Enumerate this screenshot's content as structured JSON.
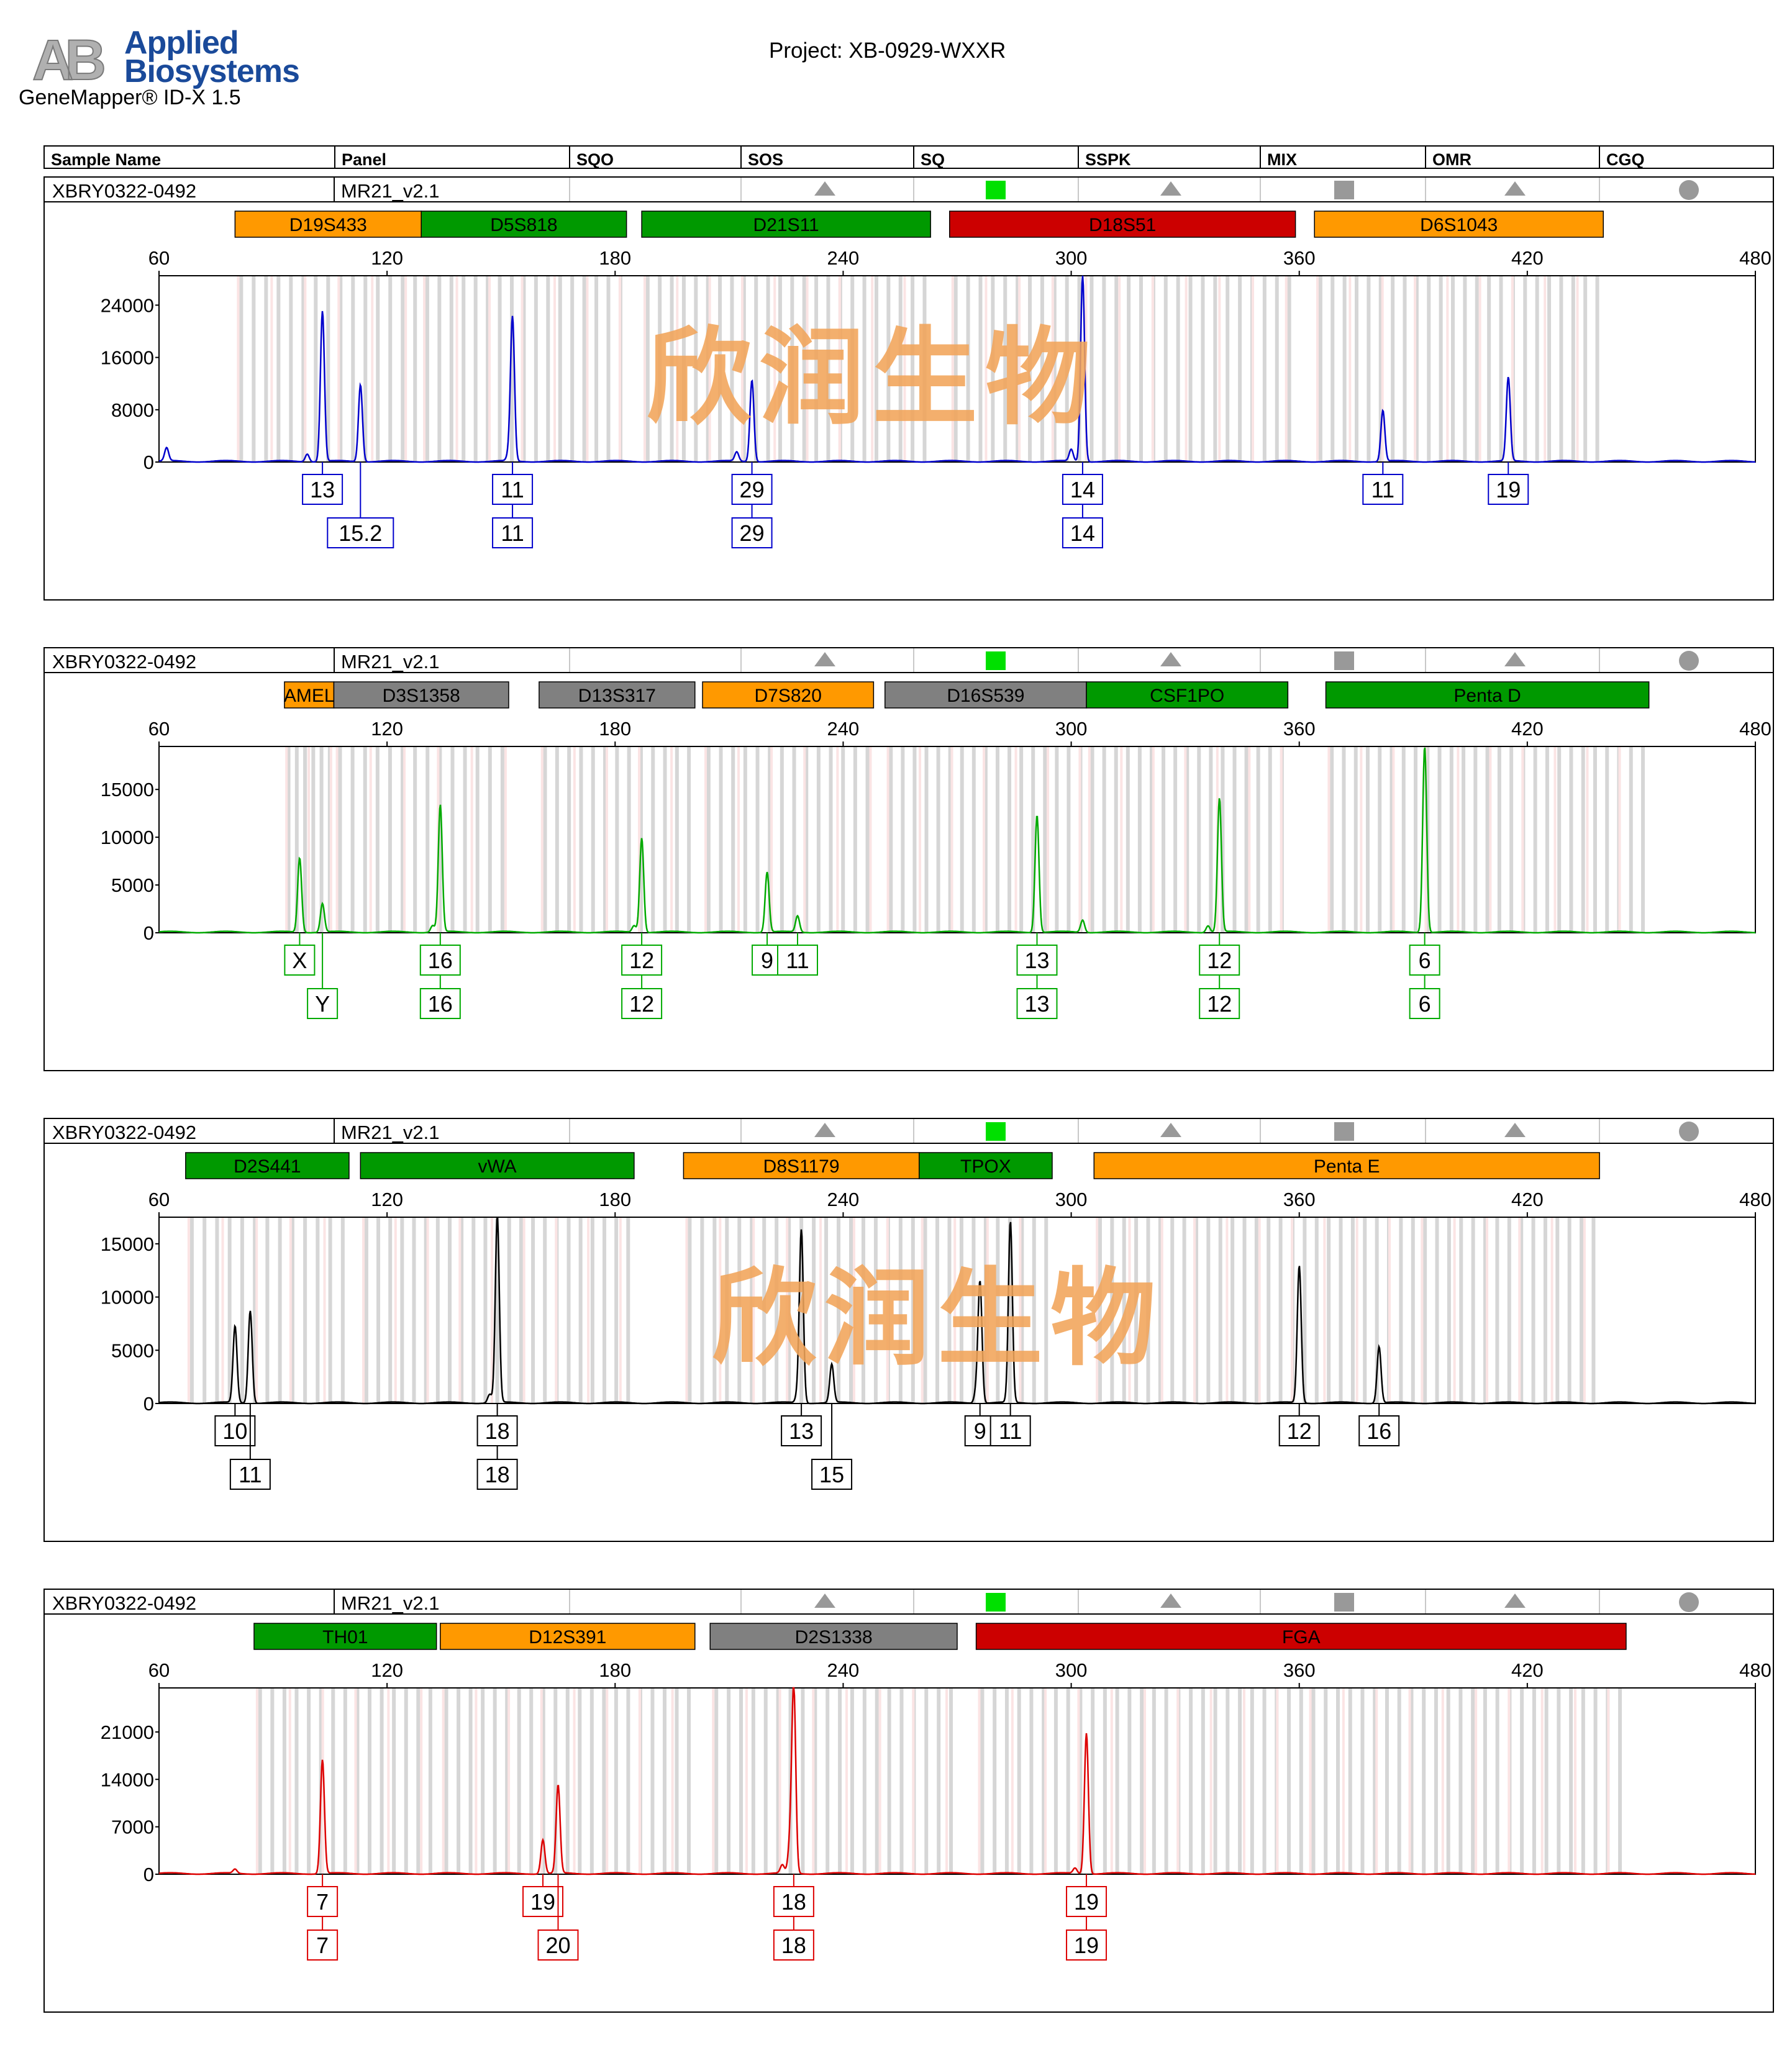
{
  "header": {
    "brand_line1": "Applied",
    "brand_line2": "Biosystems",
    "app_title": "GeneMapper® ID-X  1.5",
    "project": "Project: XB-0929-WXXR",
    "logo_letters": "AB"
  },
  "columns": [
    "Sample Name",
    "Panel",
    "SQO",
    "SOS",
    "SQ",
    "SSPK",
    "MIX",
    "OMR",
    "CGQ"
  ],
  "quality_flags": [
    {
      "name": "sos",
      "shape": "triangle",
      "color": "#999999"
    },
    {
      "name": "sq",
      "shape": "square",
      "color": "#00e000"
    },
    {
      "name": "sspk",
      "shape": "triangle",
      "color": "#999999"
    },
    {
      "name": "mix",
      "shape": "square",
      "color": "#999999"
    },
    {
      "name": "omr",
      "shape": "triangle",
      "color": "#999999"
    },
    {
      "name": "cgq",
      "shape": "circle",
      "color": "#999999"
    }
  ],
  "watermark": "欣润生物",
  "locus_colors": {
    "orange": "#ff9900",
    "green": "#009900",
    "red": "#cc0000",
    "gray": "#808080"
  },
  "chart_data": [
    {
      "type": "line",
      "sample": "XBRY0322-0492",
      "panel": "MR21_v2.1",
      "dye_color": "#0000cc",
      "x_range": [
        60,
        480
      ],
      "x_ticks": [
        60,
        120,
        180,
        240,
        300,
        360,
        420,
        480
      ],
      "y_range": [
        0,
        28500
      ],
      "y_ticks": [
        0,
        8000,
        16000,
        24000
      ],
      "loci": [
        {
          "name": "D19S433",
          "start": 80,
          "end": 129,
          "color": "orange"
        },
        {
          "name": "D5S818",
          "start": 129,
          "end": 183,
          "color": "green"
        },
        {
          "name": "D21S11",
          "start": 187,
          "end": 263,
          "color": "green"
        },
        {
          "name": "D18S51",
          "start": 268,
          "end": 359,
          "color": "red"
        },
        {
          "name": "D6S1043",
          "start": 364,
          "end": 440,
          "color": "orange"
        }
      ],
      "peaks": [
        {
          "x": 62,
          "y": 2000
        },
        {
          "x": 99,
          "y": 1200
        },
        {
          "x": 103,
          "y": 23000
        },
        {
          "x": 113,
          "y": 11800
        },
        {
          "x": 152,
          "y": 1000
        },
        {
          "x": 153,
          "y": 22000
        },
        {
          "x": 212,
          "y": 1400
        },
        {
          "x": 216,
          "y": 12500
        },
        {
          "x": 300,
          "y": 1800
        },
        {
          "x": 303,
          "y": 28500
        },
        {
          "x": 382,
          "y": 7800
        },
        {
          "x": 415,
          "y": 12800
        }
      ],
      "alleles": [
        {
          "x": 103,
          "row1": "13",
          "row2": ""
        },
        {
          "x": 113,
          "row1": "",
          "row2": "15.2"
        },
        {
          "x": 153,
          "row1": "11",
          "row2": "11"
        },
        {
          "x": 216,
          "row1": "29",
          "row2": "29"
        },
        {
          "x": 303,
          "row1": "14",
          "row2": "14"
        },
        {
          "x": 382,
          "row1": "11",
          "row2": ""
        },
        {
          "x": 415,
          "row1": "19",
          "row2": ""
        }
      ]
    },
    {
      "type": "line",
      "sample": "XBRY0322-0492",
      "panel": "MR21_v2.1",
      "dye_color": "#00aa00",
      "x_range": [
        60,
        480
      ],
      "x_ticks": [
        60,
        120,
        180,
        240,
        300,
        360,
        420,
        480
      ],
      "y_range": [
        0,
        19500
      ],
      "y_ticks": [
        0,
        5000,
        10000,
        15000
      ],
      "loci": [
        {
          "name": "AMEL",
          "start": 93,
          "end": 106,
          "color": "orange"
        },
        {
          "name": "D3S1358",
          "start": 106,
          "end": 152,
          "color": "gray"
        },
        {
          "name": "D13S317",
          "start": 160,
          "end": 201,
          "color": "gray"
        },
        {
          "name": "D7S820",
          "start": 203,
          "end": 248,
          "color": "orange"
        },
        {
          "name": "D16S539",
          "start": 251,
          "end": 304,
          "color": "gray"
        },
        {
          "name": "CSF1PO",
          "start": 304,
          "end": 357,
          "color": "green"
        },
        {
          "name": "Penta D",
          "start": 367,
          "end": 452,
          "color": "green"
        }
      ],
      "peaks": [
        {
          "x": 97,
          "y": 7800
        },
        {
          "x": 103,
          "y": 3000
        },
        {
          "x": 132,
          "y": 700
        },
        {
          "x": 134,
          "y": 13300
        },
        {
          "x": 185,
          "y": 700
        },
        {
          "x": 187,
          "y": 9900
        },
        {
          "x": 220,
          "y": 6300
        },
        {
          "x": 228,
          "y": 1700
        },
        {
          "x": 291,
          "y": 12300
        },
        {
          "x": 303,
          "y": 1300
        },
        {
          "x": 336,
          "y": 700
        },
        {
          "x": 339,
          "y": 14000
        },
        {
          "x": 393,
          "y": 19500
        }
      ],
      "alleles": [
        {
          "x": 97,
          "row1": "X",
          "row2": ""
        },
        {
          "x": 103,
          "row1": "",
          "row2": "Y"
        },
        {
          "x": 134,
          "row1": "16",
          "row2": "16"
        },
        {
          "x": 187,
          "row1": "12",
          "row2": "12"
        },
        {
          "x": 220,
          "row1": "9",
          "row2": ""
        },
        {
          "x": 228,
          "row1": "11",
          "row2": ""
        },
        {
          "x": 291,
          "row1": "13",
          "row2": "13"
        },
        {
          "x": 339,
          "row1": "12",
          "row2": "12"
        },
        {
          "x": 393,
          "row1": "6",
          "row2": "6"
        }
      ]
    },
    {
      "type": "line",
      "sample": "XBRY0322-0492",
      "panel": "MR21_v2.1",
      "dye_color": "#000000",
      "x_range": [
        60,
        480
      ],
      "x_ticks": [
        60,
        120,
        180,
        240,
        300,
        360,
        420,
        480
      ],
      "y_range": [
        0,
        17500
      ],
      "y_ticks": [
        0,
        5000,
        10000,
        15000
      ],
      "loci": [
        {
          "name": "D2S441",
          "start": 67,
          "end": 110,
          "color": "green"
        },
        {
          "name": "vWA",
          "start": 113,
          "end": 185,
          "color": "green"
        },
        {
          "name": "D8S1179",
          "start": 198,
          "end": 260,
          "color": "orange"
        },
        {
          "name": "TPOX",
          "start": 260,
          "end": 295,
          "color": "green"
        },
        {
          "name": "Penta E",
          "start": 306,
          "end": 439,
          "color": "orange"
        }
      ],
      "peaks": [
        {
          "x": 80,
          "y": 7200
        },
        {
          "x": 84,
          "y": 8700
        },
        {
          "x": 147,
          "y": 800
        },
        {
          "x": 149,
          "y": 17500
        },
        {
          "x": 228,
          "y": 700
        },
        {
          "x": 229,
          "y": 16200
        },
        {
          "x": 237,
          "y": 3600
        },
        {
          "x": 275,
          "y": 1000
        },
        {
          "x": 276,
          "y": 11400
        },
        {
          "x": 284,
          "y": 17000
        },
        {
          "x": 360,
          "y": 12900
        },
        {
          "x": 381,
          "y": 5300
        }
      ],
      "alleles": [
        {
          "x": 80,
          "row1": "10",
          "row2": ""
        },
        {
          "x": 84,
          "row1": "",
          "row2": "11"
        },
        {
          "x": 149,
          "row1": "18",
          "row2": "18"
        },
        {
          "x": 229,
          "row1": "13",
          "row2": ""
        },
        {
          "x": 237,
          "row1": "",
          "row2": "15"
        },
        {
          "x": 276,
          "row1": "9",
          "row2": ""
        },
        {
          "x": 284,
          "row1": "11",
          "row2": ""
        },
        {
          "x": 360,
          "row1": "12",
          "row2": ""
        },
        {
          "x": 381,
          "row1": "16",
          "row2": ""
        }
      ]
    },
    {
      "type": "line",
      "sample": "XBRY0322-0492",
      "panel": "MR21_v2.1",
      "dye_color": "#dd0000",
      "x_range": [
        60,
        480
      ],
      "x_ticks": [
        60,
        120,
        180,
        240,
        300,
        360,
        420,
        480
      ],
      "y_range": [
        0,
        27500
      ],
      "y_ticks": [
        0,
        7000,
        14000,
        21000
      ],
      "loci": [
        {
          "name": "TH01",
          "start": 85,
          "end": 133,
          "color": "green"
        },
        {
          "name": "D12S391",
          "start": 134,
          "end": 201,
          "color": "orange"
        },
        {
          "name": "D2S1338",
          "start": 205,
          "end": 270,
          "color": "gray"
        },
        {
          "name": "FGA",
          "start": 275,
          "end": 446,
          "color": "red"
        }
      ],
      "peaks": [
        {
          "x": 80,
          "y": 600
        },
        {
          "x": 103,
          "y": 16800
        },
        {
          "x": 161,
          "y": 5000
        },
        {
          "x": 165,
          "y": 13000
        },
        {
          "x": 224,
          "y": 1200
        },
        {
          "x": 226,
          "y": 4000
        },
        {
          "x": 227,
          "y": 27500
        },
        {
          "x": 301,
          "y": 800
        },
        {
          "x": 304,
          "y": 20800
        }
      ],
      "alleles": [
        {
          "x": 103,
          "row1": "7",
          "row2": "7"
        },
        {
          "x": 161,
          "row1": "19",
          "row2": ""
        },
        {
          "x": 165,
          "row1": "",
          "row2": "20"
        },
        {
          "x": 227,
          "row1": "18",
          "row2": "18"
        },
        {
          "x": 304,
          "row1": "19",
          "row2": "19"
        }
      ]
    }
  ]
}
